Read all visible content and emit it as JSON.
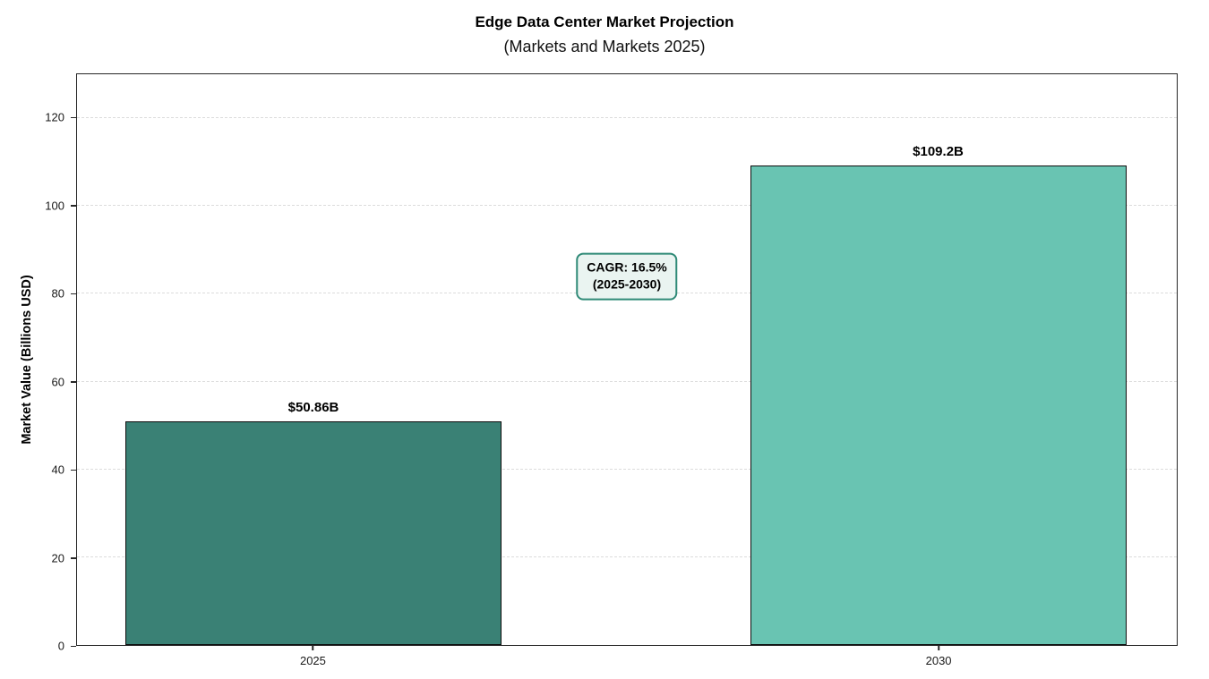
{
  "figure": {
    "title": "Edge Data Center Market Projection",
    "subtitle": "(Markets and Markets 2025)"
  },
  "chart_data": {
    "type": "bar",
    "title": "Edge Data Center Market Projection",
    "subtitle": "(Markets and Markets 2025)",
    "xlabel": "",
    "ylabel": "Market Value (Billions USD)",
    "categories": [
      "2025",
      "2030"
    ],
    "values": [
      50.86,
      109.2
    ],
    "bar_labels": [
      "$50.86B",
      "$109.2B"
    ],
    "bar_colors": [
      "#3a8175",
      "#69c4b2"
    ],
    "bar_edge_color": "#0d0d0d",
    "ylim": [
      0,
      130
    ],
    "yticks": [
      0,
      20,
      40,
      60,
      80,
      100,
      120
    ],
    "grid": "horizontal dashed",
    "grid_color": "#dcdcdc",
    "legend": "none",
    "bar_centers_frac": [
      0.215,
      0.783
    ],
    "bar_width_frac": 0.342,
    "annotation": {
      "line1": "CAGR: 16.5%",
      "line2": "(2025-2030)",
      "x_frac": 0.5,
      "y_value": 84,
      "border_color": "#2f8a77",
      "bg_color": "#eaf4f1"
    }
  }
}
